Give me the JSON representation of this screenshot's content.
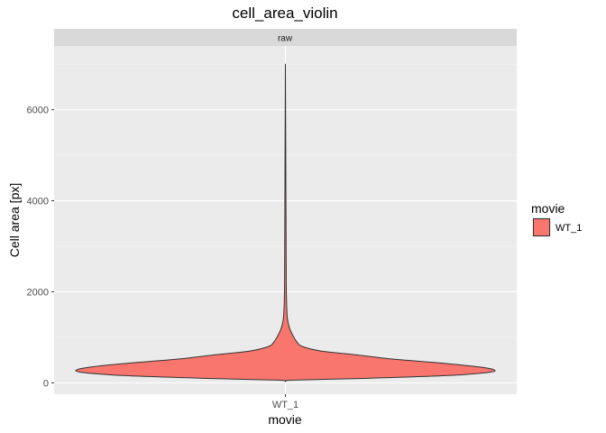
{
  "chart_data": {
    "type": "violin",
    "title": "cell_area_violin",
    "facet_label": "raw",
    "xlabel": "movie",
    "ylabel": "Cell area [px]",
    "categories": [
      "WT_1"
    ],
    "ylim": [
      -250,
      7400
    ],
    "yticks": [
      0,
      2000,
      4000,
      6000
    ],
    "grid": true,
    "legend": {
      "title": "movie",
      "position": "right",
      "entries": [
        {
          "label": "WT_1",
          "color": "#F8766D"
        }
      ]
    },
    "series": [
      {
        "name": "WT_1",
        "color": "#F8766D",
        "y_min": 30,
        "y_max": 7000,
        "density": [
          {
            "y": 30,
            "w": 0.0
          },
          {
            "y": 60,
            "w": 0.04
          },
          {
            "y": 100,
            "w": 0.4
          },
          {
            "y": 160,
            "w": 0.78
          },
          {
            "y": 230,
            "w": 0.98
          },
          {
            "y": 290,
            "w": 1.0
          },
          {
            "y": 350,
            "w": 0.93
          },
          {
            "y": 430,
            "w": 0.76
          },
          {
            "y": 520,
            "w": 0.52
          },
          {
            "y": 620,
            "w": 0.33
          },
          {
            "y": 700,
            "w": 0.17
          },
          {
            "y": 800,
            "w": 0.08
          },
          {
            "y": 900,
            "w": 0.055
          },
          {
            "y": 1050,
            "w": 0.035
          },
          {
            "y": 1200,
            "w": 0.02
          },
          {
            "y": 1400,
            "w": 0.01
          },
          {
            "y": 1700,
            "w": 0.006
          },
          {
            "y": 2200,
            "w": 0.004
          },
          {
            "y": 3500,
            "w": 0.003
          },
          {
            "y": 7000,
            "w": 0.0
          }
        ]
      }
    ]
  }
}
